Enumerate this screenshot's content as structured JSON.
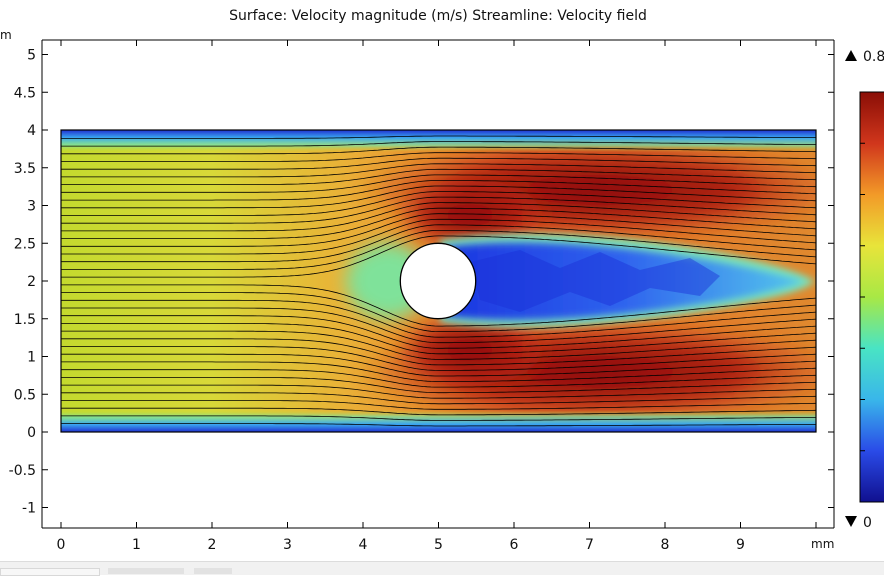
{
  "window": {
    "title": "Surface: Velocity magnitude (m/s)  Streamline: Velocity field"
  },
  "chart_data": {
    "type": "heatmap",
    "title": "Surface: Velocity magnitude (m/s)  Streamline: Velocity field",
    "xlabel": "mm",
    "ylabel": "mm",
    "xlim": [
      -0.25,
      10.25
    ],
    "ylim": [
      -1.3,
      5.45
    ],
    "x_ticks": [
      0,
      1,
      2,
      3,
      4,
      5,
      6,
      7,
      8,
      9
    ],
    "x_tick_labels": [
      "0",
      "1",
      "2",
      "3",
      "4",
      "5",
      "6",
      "7",
      "8",
      "9"
    ],
    "y_ticks": [
      -1,
      -0.5,
      0,
      0.5,
      1,
      1.5,
      2,
      2.5,
      3,
      3.5,
      4,
      4.5,
      5
    ],
    "y_tick_labels": [
      "-1",
      "-0.5",
      "0",
      "0.5",
      "1",
      "1.5",
      "2",
      "2.5",
      "3",
      "3.5",
      "4",
      "4.5",
      "5"
    ],
    "x_unit_label": "mm",
    "y_unit_label": "m",
    "domain": {
      "x": [
        0,
        10
      ],
      "y": [
        0,
        4
      ]
    },
    "obstacle": {
      "type": "circle",
      "cx": 5,
      "cy": 2,
      "r": 0.5
    },
    "streamline_count": 38,
    "colorbar": {
      "min": 0,
      "max": 0.8,
      "max_label": "0.8",
      "min_label": "0",
      "colormap": "rainbow",
      "max_marker": "up-triangle-icon",
      "min_marker": "down-triangle-icon",
      "colors": [
        "#10108f",
        "#2a4be8",
        "#39b6ea",
        "#49e4c4",
        "#a8e845",
        "#e8e43a",
        "#f29a28",
        "#d0361c",
        "#8a0e06"
      ]
    },
    "colors": {
      "inlet": "#c4d92e",
      "main_flow": "#e8c53a",
      "jet": "#9b1608",
      "wake": "#2f64ee",
      "wall": "#2030d0"
    },
    "grid": false
  }
}
